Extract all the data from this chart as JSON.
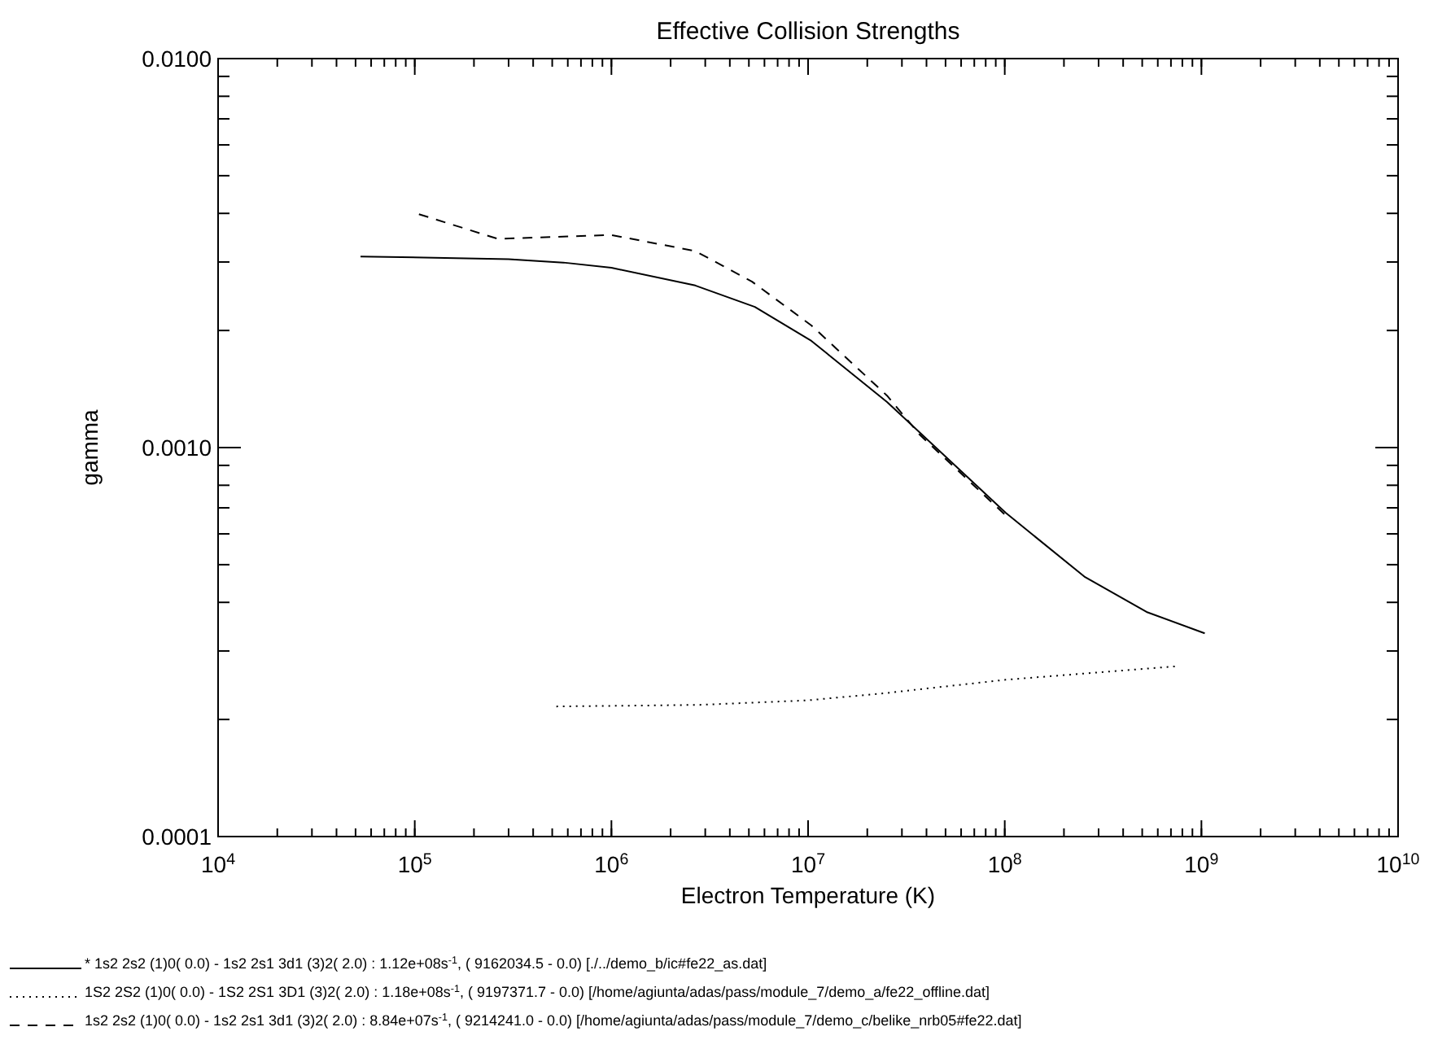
{
  "chart_data": {
    "type": "line",
    "title": "Effective Collision Strengths",
    "xlabel": "Electron Temperature (K)",
    "ylabel": "gamma",
    "log": "xy",
    "grid": false,
    "legend": "bottom",
    "xlim": [
      10000,
      10000000000
    ],
    "ylim": [
      0.0001,
      0.01
    ],
    "xticks": [
      {
        "value": 10000,
        "label": "10$^{4}$"
      },
      {
        "value": 100000,
        "label": "10$^{5}$"
      },
      {
        "value": 1000000,
        "label": "10$^{6}$"
      },
      {
        "value": 10000000,
        "label": "10$^{7}$"
      },
      {
        "value": 100000000,
        "label": "10$^{8}$"
      },
      {
        "value": 1000000000,
        "label": "10$^{9}$"
      },
      {
        "value": 10000000000,
        "label": "10$^{10}$"
      }
    ],
    "yticks": [
      {
        "value": 0.0001,
        "label": "0.0001"
      },
      {
        "value": 0.001,
        "label": "0.0010"
      },
      {
        "value": 0.01,
        "label": "0.0100"
      }
    ],
    "series": [
      {
        "name": "* 1s2 2s2 (1)0( 0.0) - 1s2 2s1 3d1 (3)2( 2.0) : 1.12e+08s$^{-1}$, ( 9162034.5 - 0.0)  [./../demo_b/ic#fe22_as.dat]",
        "color": "#000000",
        "line_style": "solid",
        "x": [
          53000,
          300000,
          570000,
          1000000,
          2670000,
          5360000,
          10400000,
          25200000,
          101000000,
          254000000,
          526000000,
          1040000000
        ],
        "values": [
          0.0031,
          0.00305,
          0.00299,
          0.0029,
          0.00261,
          0.0023,
          0.00188,
          0.00131,
          0.00068,
          0.000466,
          0.000378,
          0.000333
        ]
      },
      {
        "name": "1S2 2S2 (1)0( 0.0) - 1S2 2S1 3D1 (3)2( 2.0) : 1.18e+08s$^{-1}$, ( 9197371.7 - 0.0)  [/home/agiunta/adas/pass/module_7/demo_a/fe22_offline.dat]",
        "color": "#000000",
        "line_style": "dotted",
        "x": [
          525000,
          2760000,
          10000000,
          25200000,
          101000000,
          745000000
        ],
        "values": [
          0.000216,
          0.000218,
          0.000224,
          0.000234,
          0.000253,
          0.000274
        ]
      },
      {
        "name": "1s2 2s2 (1)0( 0.0) - 1s2 2s1 3d1 (3)2( 2.0) : 8.84e+07s$^{-1}$, ( 9214241.0 - 0.0)  [/home/agiunta/adas/pass/module_7/demo_c/belike_nrb05#fe22.dat]",
        "color": "#000000",
        "line_style": "dashed",
        "x": [
          105000,
          265000,
          1000000,
          2670000,
          5190000,
          10400000,
          25200000,
          36900000,
          101000000
        ],
        "values": [
          0.00398,
          0.00344,
          0.00352,
          0.0032,
          0.00267,
          0.00206,
          0.00136,
          0.00108,
          0.00067
        ]
      }
    ]
  }
}
